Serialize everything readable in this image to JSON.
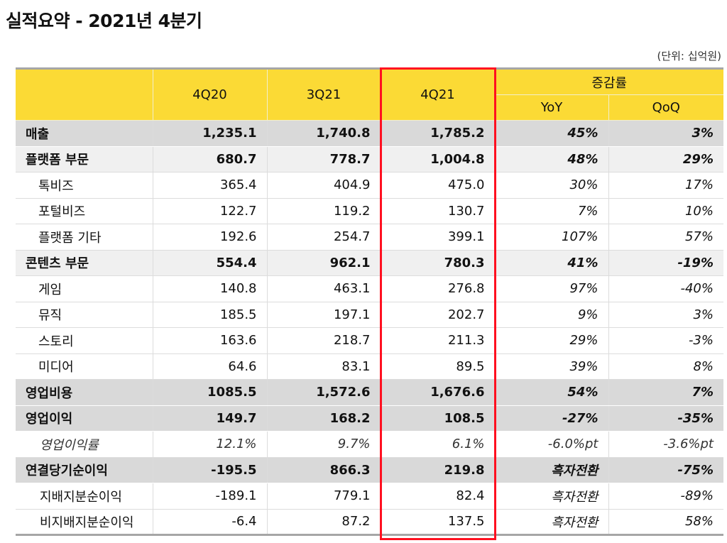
{
  "title": "실적요약 - 2021년 4분기",
  "unit": "(단위: 십억원)",
  "header": {
    "cols": [
      "4Q20",
      "3Q21",
      "4Q21"
    ],
    "growth": "증감률",
    "yoy": "YoY",
    "qoq": "QoQ"
  },
  "rows": [
    {
      "label": "매출",
      "v": [
        "1,235.1",
        "1,740.8",
        "1,785.2"
      ],
      "yoy": "45%",
      "qoq": "3%"
    },
    {
      "label": "플랫폼 부문",
      "v": [
        "680.7",
        "778.7",
        "1,004.8"
      ],
      "yoy": "48%",
      "qoq": "29%"
    },
    {
      "label": "톡비즈",
      "v": [
        "365.4",
        "404.9",
        "475.0"
      ],
      "yoy": "30%",
      "qoq": "17%"
    },
    {
      "label": "포털비즈",
      "v": [
        "122.7",
        "119.2",
        "130.7"
      ],
      "yoy": "7%",
      "qoq": "10%"
    },
    {
      "label": "플랫폼 기타",
      "v": [
        "192.6",
        "254.7",
        "399.1"
      ],
      "yoy": "107%",
      "qoq": "57%"
    },
    {
      "label": "콘텐츠 부문",
      "v": [
        "554.4",
        "962.1",
        "780.3"
      ],
      "yoy": "41%",
      "qoq": "-19%"
    },
    {
      "label": "게임",
      "v": [
        "140.8",
        "463.1",
        "276.8"
      ],
      "yoy": "97%",
      "qoq": "-40%"
    },
    {
      "label": "뮤직",
      "v": [
        "185.5",
        "197.1",
        "202.7"
      ],
      "yoy": "9%",
      "qoq": "3%"
    },
    {
      "label": "스토리",
      "v": [
        "163.6",
        "218.7",
        "211.3"
      ],
      "yoy": "29%",
      "qoq": "-3%"
    },
    {
      "label": "미디어",
      "v": [
        "64.6",
        "83.1",
        "89.5"
      ],
      "yoy": "39%",
      "qoq": "8%"
    },
    {
      "label": "영업비용",
      "v": [
        "1085.5",
        "1,572.6",
        "1,676.6"
      ],
      "yoy": "54%",
      "qoq": "7%"
    },
    {
      "label": "영업이익",
      "v": [
        "149.7",
        "168.2",
        "108.5"
      ],
      "yoy": "-27%",
      "qoq": "-35%"
    },
    {
      "label": "영업이익률",
      "v": [
        "12.1%",
        "9.7%",
        "6.1%"
      ],
      "yoy": "-6.0%pt",
      "qoq": "-3.6%pt"
    },
    {
      "label": "연결당기순이익",
      "v": [
        "-195.5",
        "866.3",
        "219.8"
      ],
      "yoy": "흑자전환",
      "qoq": "-75%"
    },
    {
      "label": "지배지분순이익",
      "v": [
        "-189.1",
        "779.1",
        "82.4"
      ],
      "yoy": "흑자전환",
      "qoq": "-89%"
    },
    {
      "label": "비지배지분순이익",
      "v": [
        "-6.4",
        "87.2",
        "137.5"
      ],
      "yoy": "흑자전환",
      "qoq": "58%"
    }
  ],
  "colors": {
    "header": "#fbda35",
    "highlight": "#ff1020",
    "major_row": "#d9d9d9",
    "segment_row": "#f0f0f0"
  }
}
